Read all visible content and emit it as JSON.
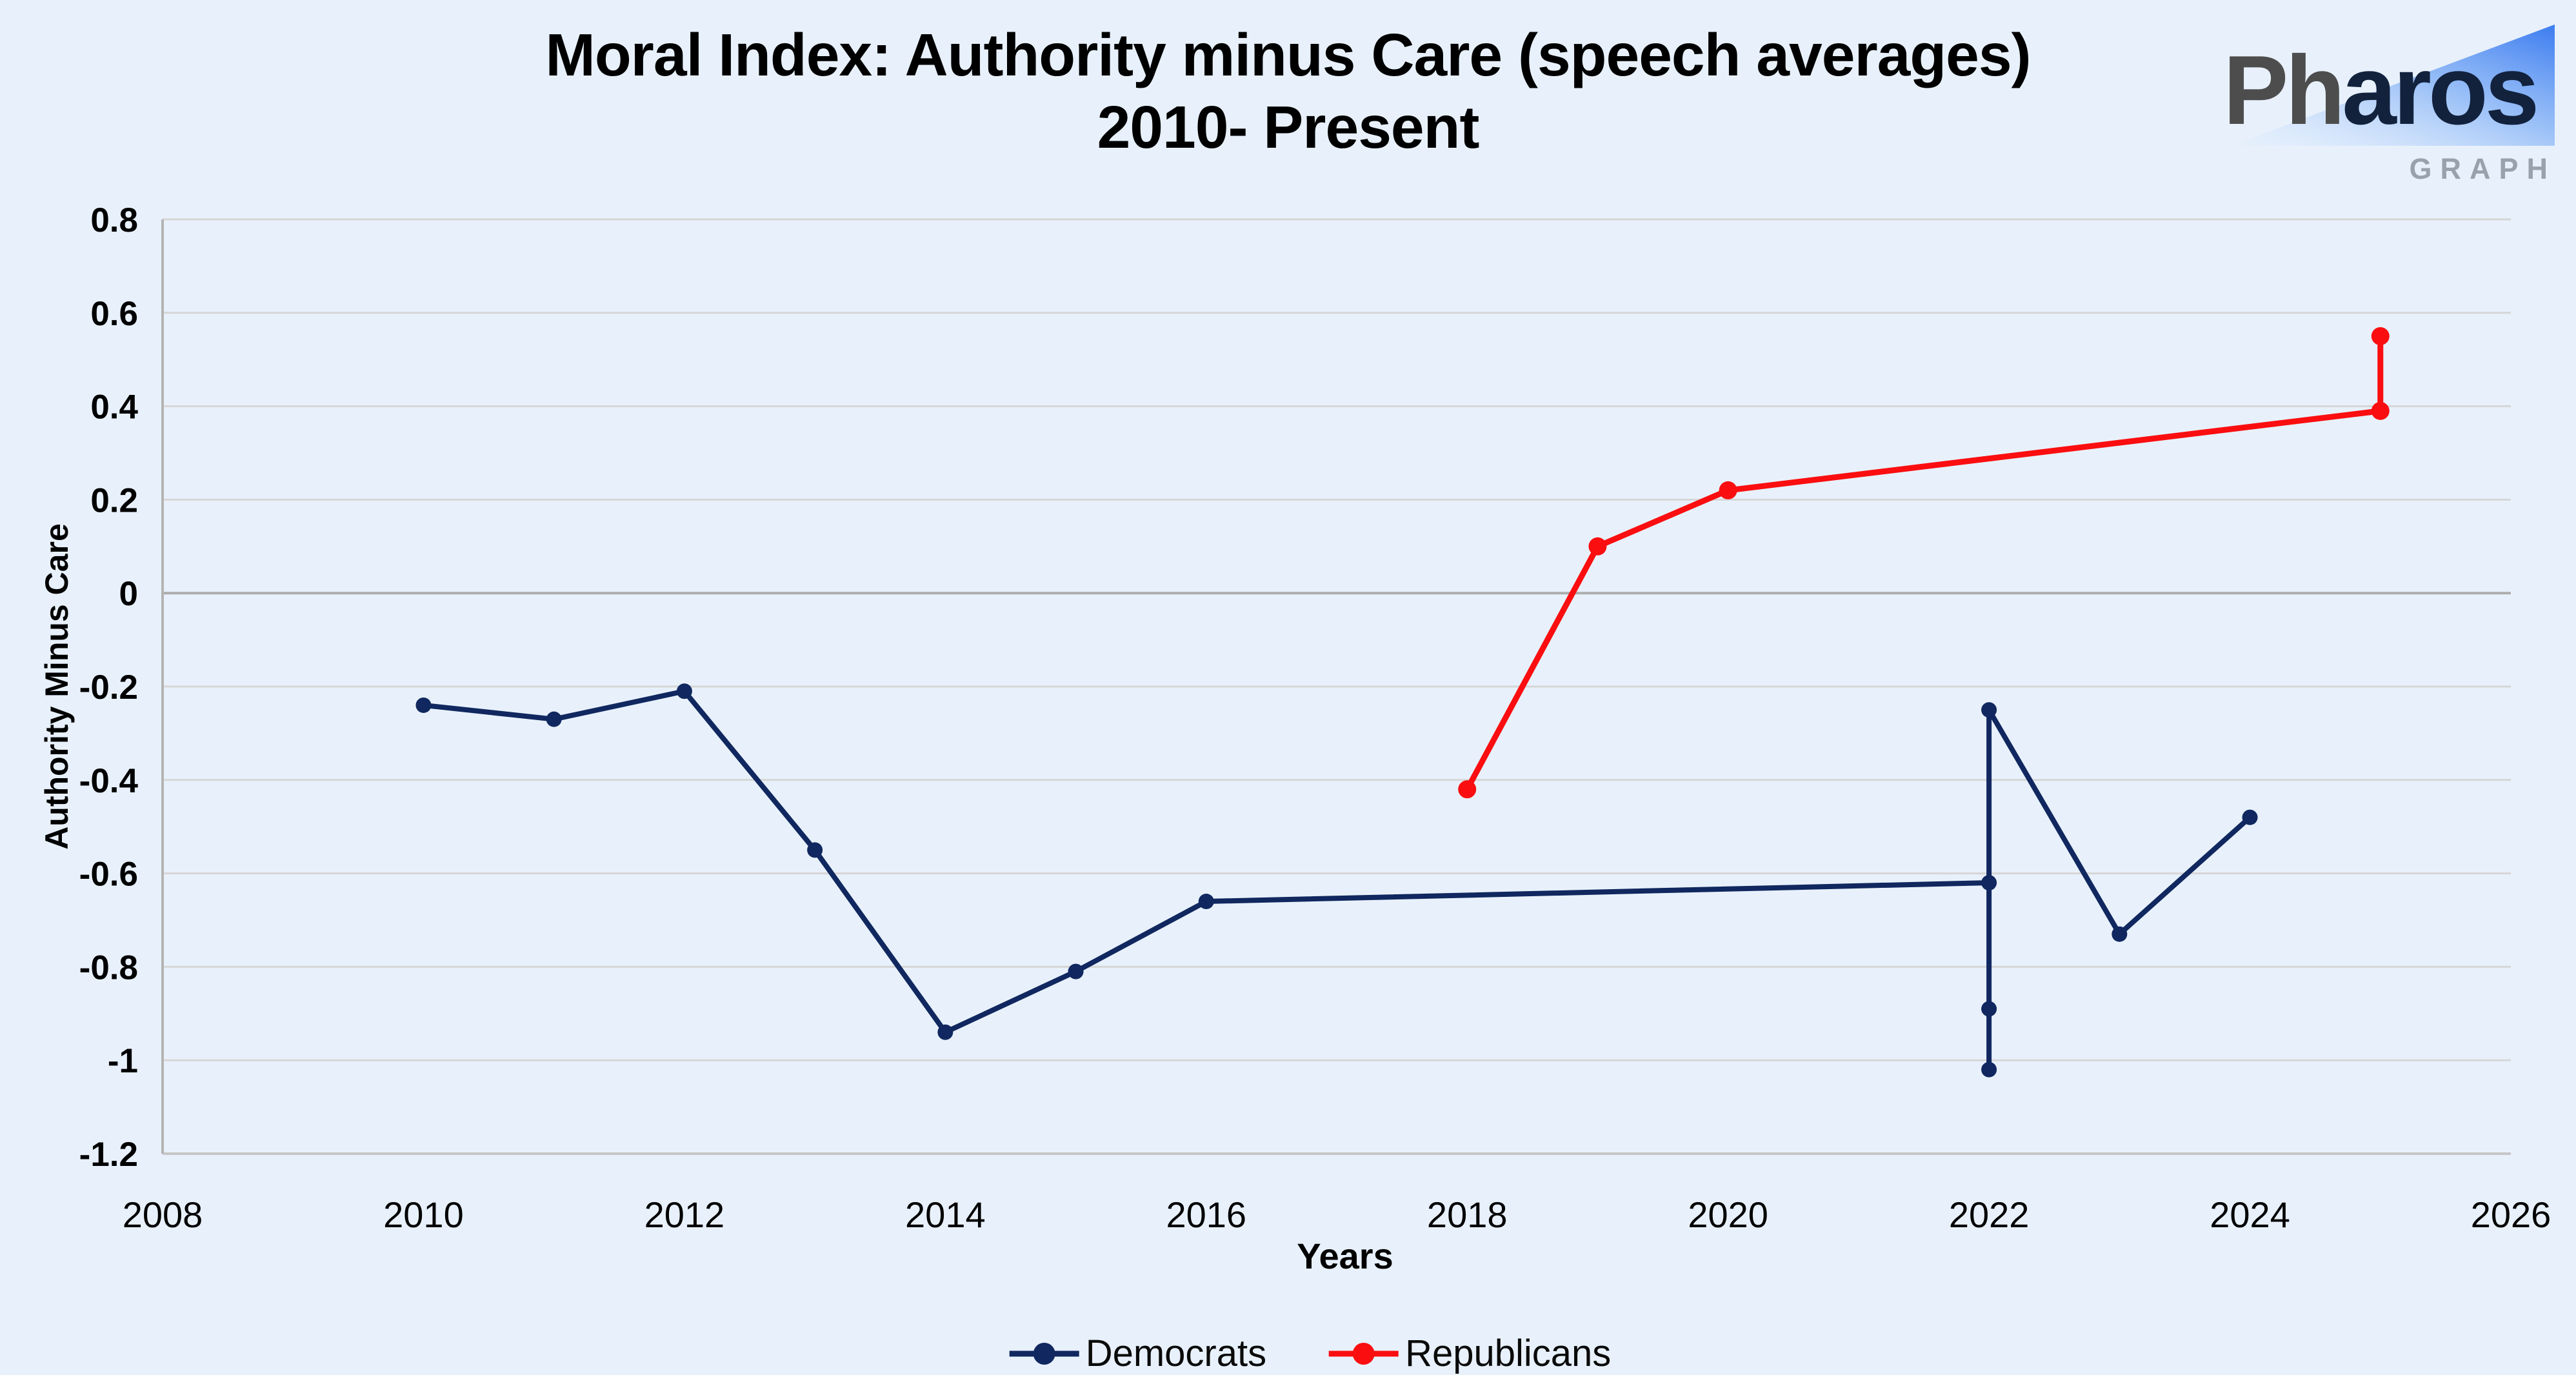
{
  "page": {
    "background": "#e8f1fb"
  },
  "header": {
    "title_line1": "Moral Index: Authority minus Care (speech averages)",
    "title_line2": "2010- Present"
  },
  "logo": {
    "brand_prefix": "Ph",
    "brand_suffix": "aros",
    "subtext": "GRAPH",
    "triangle_gradient_start": "#e3efff",
    "triangle_gradient_end": "#3c7cf0",
    "wordmark_gray": "#4d4d4d",
    "wordmark_navy": "#12223d",
    "subtext_color": "#99a1ac"
  },
  "chart_data": {
    "type": "line",
    "title": "Moral Index: Authority minus Care (speech averages) 2010- Present",
    "xlabel": "Years",
    "ylabel": "Authority Minus Care",
    "xlim": [
      2008,
      2026
    ],
    "ylim": [
      -1.2,
      0.8
    ],
    "x_ticks": [
      2008,
      2010,
      2012,
      2014,
      2016,
      2018,
      2020,
      2022,
      2024,
      2026
    ],
    "y_ticks": [
      0.8,
      0.6,
      0.4,
      0.2,
      0,
      -0.2,
      -0.4,
      -0.6,
      -0.8,
      -1,
      -1.2
    ],
    "y_tick_labels": [
      "0.8",
      "0.6",
      "0.4",
      "0.2",
      "0",
      "-0.2",
      "-0.4",
      "-0.6",
      "-0.8",
      "-1",
      "-1.2"
    ],
    "grid": true,
    "legend_position": "bottom",
    "series": [
      {
        "name": "Democrats",
        "color": "#10275f",
        "line_width": 8,
        "marker_radius": 12,
        "points": [
          [
            2010,
            -0.24
          ],
          [
            2011,
            -0.27
          ],
          [
            2012,
            -0.21
          ],
          [
            2013,
            -0.55
          ],
          [
            2014,
            -0.94
          ],
          [
            2015,
            -0.81
          ],
          [
            2016,
            -0.66
          ],
          [
            2022,
            -0.62
          ],
          [
            2022,
            -0.89
          ],
          [
            2022,
            -1.02
          ],
          [
            2022,
            -0.25
          ],
          [
            2023,
            -0.73
          ],
          [
            2024,
            -0.48
          ]
        ]
      },
      {
        "name": "Republicans",
        "color": "#fa0e10",
        "line_width": 9,
        "marker_radius": 14,
        "points": [
          [
            2018,
            -0.42
          ],
          [
            2019,
            0.1
          ],
          [
            2020,
            0.22
          ],
          [
            2025,
            0.39
          ],
          [
            2025,
            0.55
          ]
        ]
      }
    ],
    "colors": {
      "grid": "#d6d6d6",
      "zero_line": "#adadad",
      "bottom_axis": "#c6c6c6",
      "axis": "#b4b4b4",
      "tick_text": "#000000"
    }
  }
}
